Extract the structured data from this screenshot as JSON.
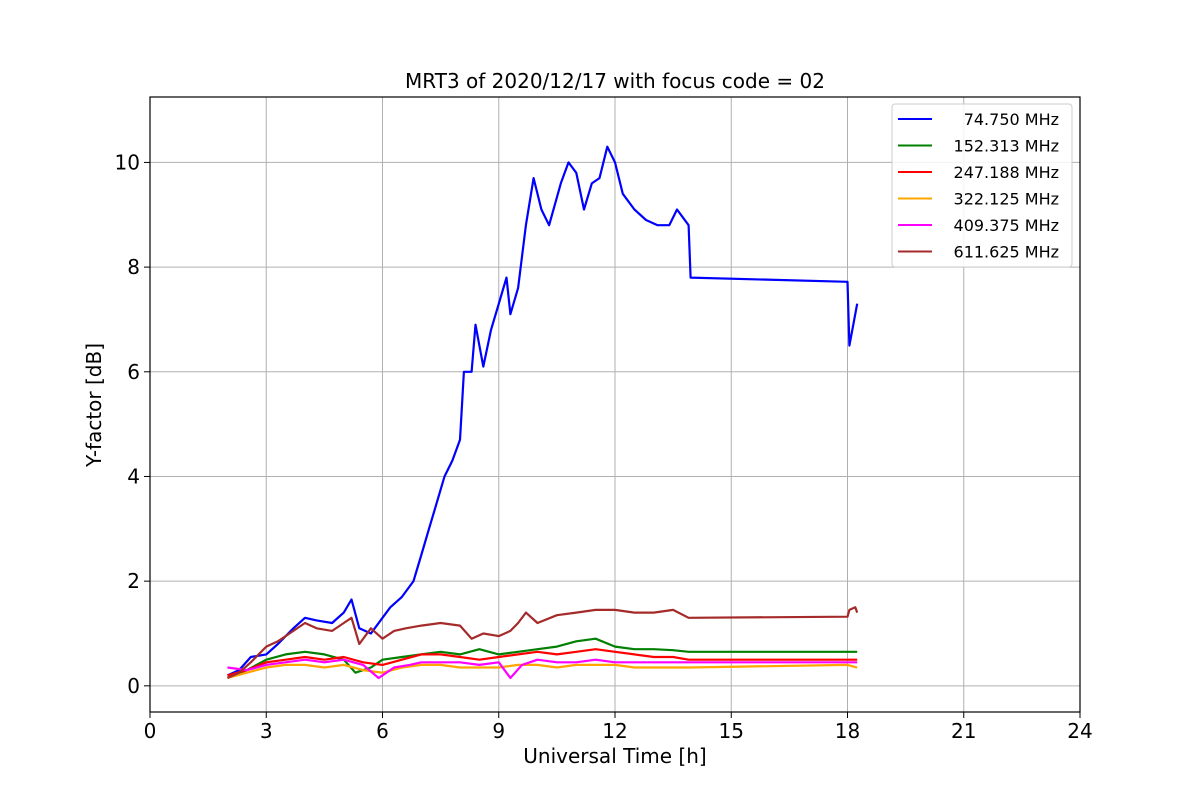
{
  "chart_data": {
    "type": "line",
    "title": "MRT3 of 2020/12/17 with focus code = 02",
    "xlabel": "Universal Time [h]",
    "ylabel": "Y-factor [dB]",
    "xlim": [
      0,
      24
    ],
    "ylim": [
      -0.5,
      11.25
    ],
    "xticks": [
      0,
      3,
      6,
      9,
      12,
      15,
      18,
      21,
      24
    ],
    "yticks": [
      0,
      2,
      4,
      6,
      8,
      10
    ],
    "grid": true,
    "legend_position": "top-right",
    "series": [
      {
        "name": "74.750 MHz",
        "color": "#0000ff",
        "points": [
          [
            2.0,
            0.2
          ],
          [
            2.3,
            0.3
          ],
          [
            2.6,
            0.55
          ],
          [
            3.0,
            0.6
          ],
          [
            3.3,
            0.8
          ],
          [
            3.7,
            1.1
          ],
          [
            4.0,
            1.3
          ],
          [
            4.3,
            1.25
          ],
          [
            4.7,
            1.2
          ],
          [
            5.0,
            1.4
          ],
          [
            5.2,
            1.65
          ],
          [
            5.4,
            1.1
          ],
          [
            5.7,
            1.0
          ],
          [
            6.0,
            1.3
          ],
          [
            6.2,
            1.5
          ],
          [
            6.5,
            1.7
          ],
          [
            6.8,
            2.0
          ],
          [
            7.0,
            2.5
          ],
          [
            7.2,
            3.0
          ],
          [
            7.4,
            3.5
          ],
          [
            7.6,
            4.0
          ],
          [
            7.8,
            4.3
          ],
          [
            8.0,
            4.7
          ],
          [
            8.1,
            6.0
          ],
          [
            8.3,
            6.0
          ],
          [
            8.4,
            6.9
          ],
          [
            8.6,
            6.1
          ],
          [
            8.8,
            6.8
          ],
          [
            9.0,
            7.3
          ],
          [
            9.2,
            7.8
          ],
          [
            9.3,
            7.1
          ],
          [
            9.5,
            7.6
          ],
          [
            9.7,
            8.8
          ],
          [
            9.9,
            9.7
          ],
          [
            10.1,
            9.1
          ],
          [
            10.3,
            8.8
          ],
          [
            10.6,
            9.6
          ],
          [
            10.8,
            10.0
          ],
          [
            11.0,
            9.8
          ],
          [
            11.2,
            9.1
          ],
          [
            11.4,
            9.6
          ],
          [
            11.6,
            9.7
          ],
          [
            11.8,
            10.3
          ],
          [
            12.0,
            10.0
          ],
          [
            12.2,
            9.4
          ],
          [
            12.5,
            9.1
          ],
          [
            12.8,
            8.9
          ],
          [
            13.1,
            8.8
          ],
          [
            13.4,
            8.8
          ],
          [
            13.6,
            9.1
          ],
          [
            13.9,
            8.8
          ],
          [
            13.95,
            7.8
          ],
          [
            18.0,
            7.72
          ],
          [
            18.05,
            6.5
          ],
          [
            18.15,
            6.9
          ],
          [
            18.25,
            7.3
          ]
        ]
      },
      {
        "name": "152.313 MHz",
        "color": "#008000",
        "points": [
          [
            2.0,
            0.15
          ],
          [
            2.5,
            0.3
          ],
          [
            3.0,
            0.5
          ],
          [
            3.5,
            0.6
          ],
          [
            4.0,
            0.65
          ],
          [
            4.5,
            0.6
          ],
          [
            5.0,
            0.5
          ],
          [
            5.3,
            0.25
          ],
          [
            5.7,
            0.35
          ],
          [
            6.0,
            0.5
          ],
          [
            6.5,
            0.55
          ],
          [
            7.0,
            0.6
          ],
          [
            7.5,
            0.65
          ],
          [
            8.0,
            0.6
          ],
          [
            8.5,
            0.7
          ],
          [
            9.0,
            0.6
          ],
          [
            9.5,
            0.65
          ],
          [
            10.0,
            0.7
          ],
          [
            10.5,
            0.75
          ],
          [
            11.0,
            0.85
          ],
          [
            11.5,
            0.9
          ],
          [
            12.0,
            0.75
          ],
          [
            12.5,
            0.7
          ],
          [
            13.0,
            0.7
          ],
          [
            13.5,
            0.68
          ],
          [
            13.9,
            0.65
          ],
          [
            18.0,
            0.65
          ],
          [
            18.25,
            0.65
          ]
        ]
      },
      {
        "name": "247.188 MHz",
        "color": "#ff0000",
        "points": [
          [
            2.0,
            0.2
          ],
          [
            2.5,
            0.3
          ],
          [
            3.0,
            0.45
          ],
          [
            3.5,
            0.5
          ],
          [
            4.0,
            0.55
          ],
          [
            4.5,
            0.5
          ],
          [
            5.0,
            0.55
          ],
          [
            5.5,
            0.45
          ],
          [
            6.0,
            0.4
          ],
          [
            6.5,
            0.5
          ],
          [
            7.0,
            0.6
          ],
          [
            7.5,
            0.6
          ],
          [
            8.0,
            0.55
          ],
          [
            8.5,
            0.5
          ],
          [
            9.0,
            0.55
          ],
          [
            9.5,
            0.6
          ],
          [
            10.0,
            0.65
          ],
          [
            10.5,
            0.6
          ],
          [
            11.0,
            0.65
          ],
          [
            11.5,
            0.7
          ],
          [
            12.0,
            0.65
          ],
          [
            12.5,
            0.6
          ],
          [
            13.0,
            0.55
          ],
          [
            13.5,
            0.55
          ],
          [
            13.9,
            0.5
          ],
          [
            18.0,
            0.5
          ],
          [
            18.25,
            0.5
          ]
        ]
      },
      {
        "name": "322.125 MHz",
        "color": "#ffa500",
        "points": [
          [
            2.0,
            0.15
          ],
          [
            2.5,
            0.25
          ],
          [
            3.0,
            0.35
          ],
          [
            3.5,
            0.4
          ],
          [
            4.0,
            0.4
          ],
          [
            4.5,
            0.35
          ],
          [
            5.0,
            0.4
          ],
          [
            5.5,
            0.3
          ],
          [
            6.0,
            0.25
          ],
          [
            6.5,
            0.35
          ],
          [
            7.0,
            0.4
          ],
          [
            7.5,
            0.4
          ],
          [
            8.0,
            0.35
          ],
          [
            8.5,
            0.35
          ],
          [
            9.0,
            0.35
          ],
          [
            9.5,
            0.4
          ],
          [
            10.0,
            0.4
          ],
          [
            10.5,
            0.35
          ],
          [
            11.0,
            0.4
          ],
          [
            11.5,
            0.4
          ],
          [
            12.0,
            0.4
          ],
          [
            12.5,
            0.35
          ],
          [
            13.0,
            0.35
          ],
          [
            13.5,
            0.35
          ],
          [
            13.9,
            0.35
          ],
          [
            18.0,
            0.4
          ],
          [
            18.25,
            0.35
          ]
        ]
      },
      {
        "name": "409.375 MHz",
        "color": "#ff00ff",
        "points": [
          [
            2.0,
            0.35
          ],
          [
            2.5,
            0.3
          ],
          [
            3.0,
            0.4
          ],
          [
            3.5,
            0.45
          ],
          [
            4.0,
            0.5
          ],
          [
            4.5,
            0.45
          ],
          [
            5.0,
            0.5
          ],
          [
            5.5,
            0.4
          ],
          [
            5.9,
            0.15
          ],
          [
            6.3,
            0.35
          ],
          [
            6.7,
            0.4
          ],
          [
            7.0,
            0.45
          ],
          [
            7.5,
            0.45
          ],
          [
            8.0,
            0.45
          ],
          [
            8.5,
            0.4
          ],
          [
            9.0,
            0.45
          ],
          [
            9.3,
            0.15
          ],
          [
            9.6,
            0.4
          ],
          [
            10.0,
            0.5
          ],
          [
            10.5,
            0.45
          ],
          [
            11.0,
            0.45
          ],
          [
            11.5,
            0.5
          ],
          [
            12.0,
            0.45
          ],
          [
            12.5,
            0.45
          ],
          [
            13.0,
            0.45
          ],
          [
            13.5,
            0.45
          ],
          [
            13.9,
            0.45
          ],
          [
            18.0,
            0.45
          ],
          [
            18.25,
            0.45
          ]
        ]
      },
      {
        "name": "611.625 MHz",
        "color": "#a52a2a",
        "points": [
          [
            2.0,
            0.15
          ],
          [
            2.3,
            0.25
          ],
          [
            2.6,
            0.45
          ],
          [
            3.0,
            0.75
          ],
          [
            3.3,
            0.85
          ],
          [
            3.6,
            1.0
          ],
          [
            4.0,
            1.2
          ],
          [
            4.3,
            1.1
          ],
          [
            4.7,
            1.05
          ],
          [
            5.0,
            1.2
          ],
          [
            5.2,
            1.3
          ],
          [
            5.4,
            0.8
          ],
          [
            5.7,
            1.1
          ],
          [
            6.0,
            0.9
          ],
          [
            6.3,
            1.05
          ],
          [
            6.6,
            1.1
          ],
          [
            7.0,
            1.15
          ],
          [
            7.5,
            1.2
          ],
          [
            8.0,
            1.15
          ],
          [
            8.3,
            0.9
          ],
          [
            8.6,
            1.0
          ],
          [
            9.0,
            0.95
          ],
          [
            9.3,
            1.05
          ],
          [
            9.5,
            1.2
          ],
          [
            9.7,
            1.4
          ],
          [
            10.0,
            1.2
          ],
          [
            10.5,
            1.35
          ],
          [
            11.0,
            1.4
          ],
          [
            11.5,
            1.45
          ],
          [
            12.0,
            1.45
          ],
          [
            12.5,
            1.4
          ],
          [
            13.0,
            1.4
          ],
          [
            13.5,
            1.45
          ],
          [
            13.9,
            1.3
          ],
          [
            18.0,
            1.32
          ],
          [
            18.05,
            1.45
          ],
          [
            18.2,
            1.5
          ],
          [
            18.25,
            1.4
          ]
        ]
      }
    ]
  }
}
